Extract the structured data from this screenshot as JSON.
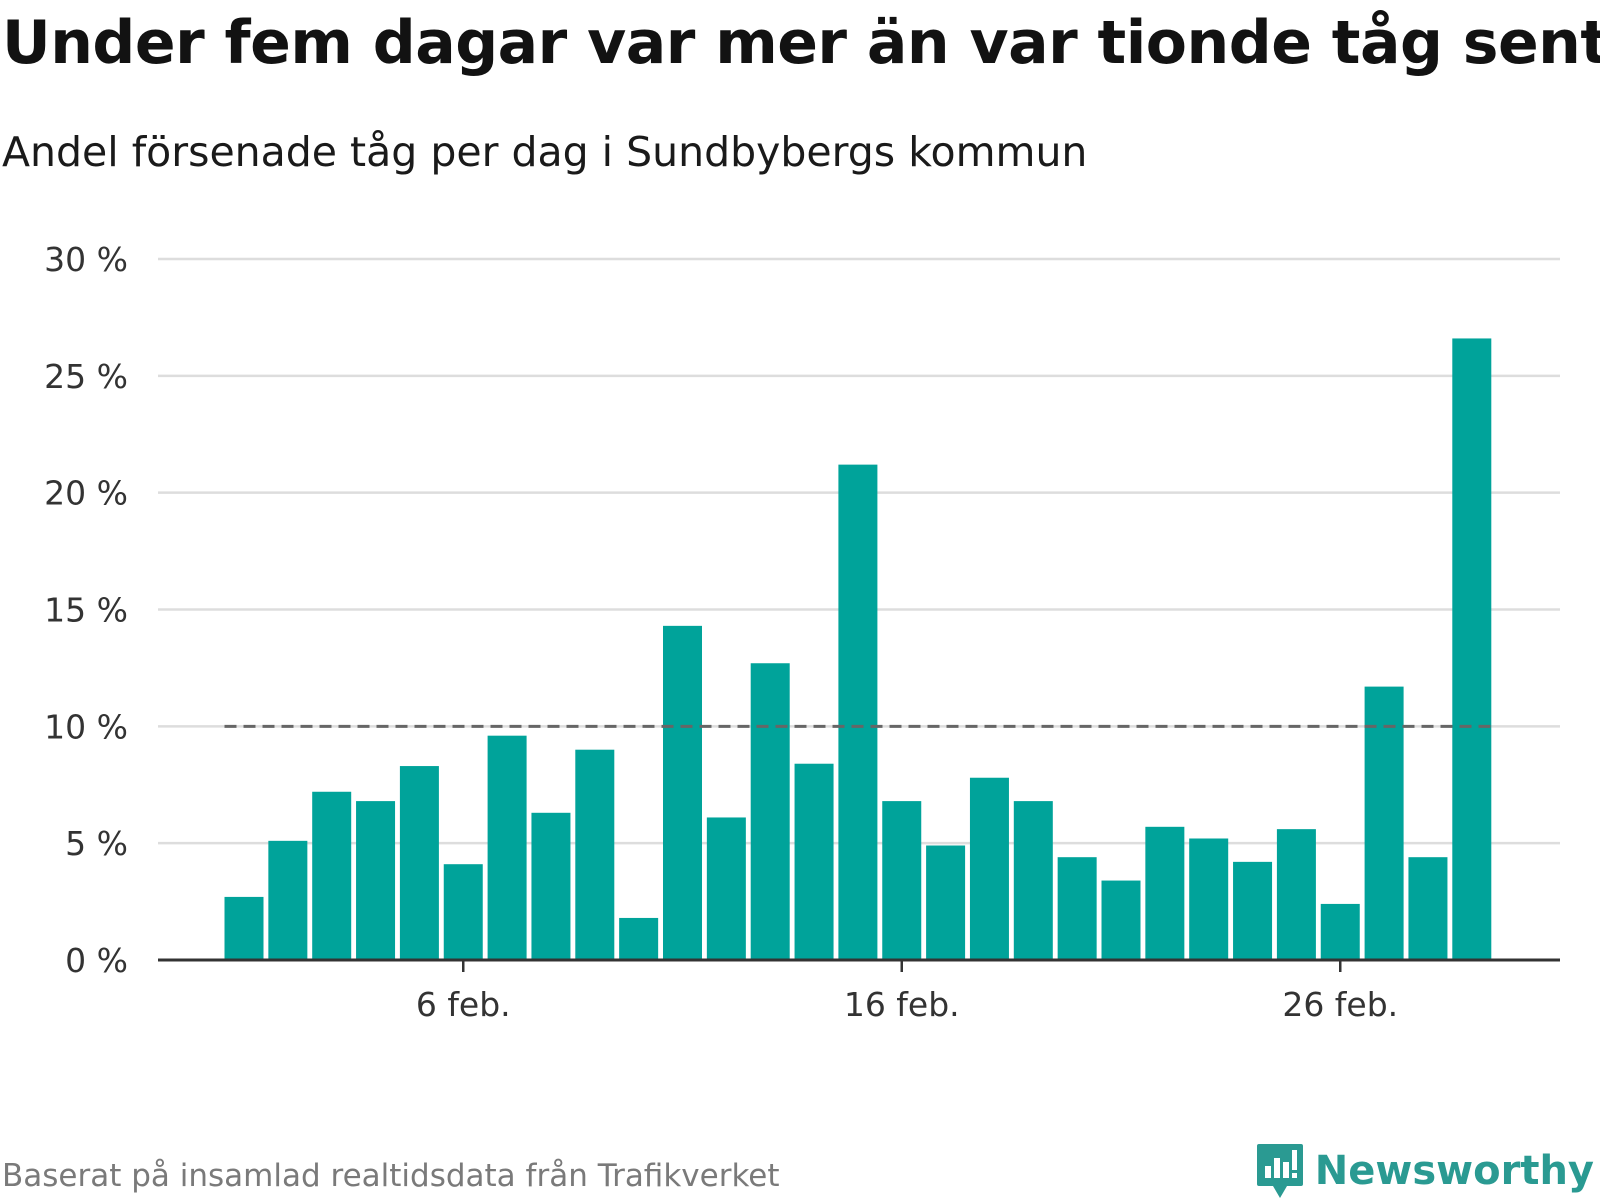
{
  "header": {
    "title": "Under fem dagar var mer än var tionde tåg sent",
    "subtitle": "Andel försenade tåg per dag i Sundbybergs kommun"
  },
  "footer": {
    "source": "Baserat på insamlad realtidsdata från Trafikverket",
    "brand": "Newsworthy"
  },
  "colors": {
    "bar": "#00a39a",
    "reference_line": "#666666",
    "grid": "#dddddd",
    "axis": "#333333",
    "brand": "#2a9a92"
  },
  "chart_data": {
    "type": "bar",
    "title": "Under fem dagar var mer än var tionde tåg sent",
    "subtitle": "Andel försenade tåg per dag i Sundbybergs kommun",
    "xlabel": "",
    "ylabel": "",
    "x_unit": "day of February",
    "x": [
      1,
      2,
      3,
      4,
      5,
      6,
      7,
      8,
      9,
      10,
      11,
      12,
      13,
      14,
      15,
      16,
      17,
      18,
      19,
      20,
      21,
      22,
      23,
      24,
      25,
      26,
      27,
      28,
      29
    ],
    "values": [
      2.7,
      5.1,
      7.2,
      6.8,
      8.3,
      4.1,
      9.6,
      6.3,
      9.0,
      1.8,
      14.3,
      6.1,
      12.7,
      8.4,
      21.2,
      6.8,
      4.9,
      7.8,
      6.8,
      4.4,
      3.4,
      5.7,
      5.2,
      4.2,
      5.6,
      2.4,
      11.7,
      4.4,
      26.6
    ],
    "ylim": [
      0,
      30
    ],
    "y_ticks": [
      0,
      5,
      10,
      15,
      20,
      25,
      30
    ],
    "y_tick_labels": [
      "0 %",
      "5 %",
      "10 %",
      "15 %",
      "20 %",
      "25 %",
      "30 %"
    ],
    "x_ticks": [
      6,
      16,
      26
    ],
    "x_tick_labels": [
      "6 feb.",
      "16 feb.",
      "26 feb."
    ],
    "reference_line": {
      "value": 10,
      "style": "dashed"
    },
    "grid": true,
    "legend": "none"
  }
}
